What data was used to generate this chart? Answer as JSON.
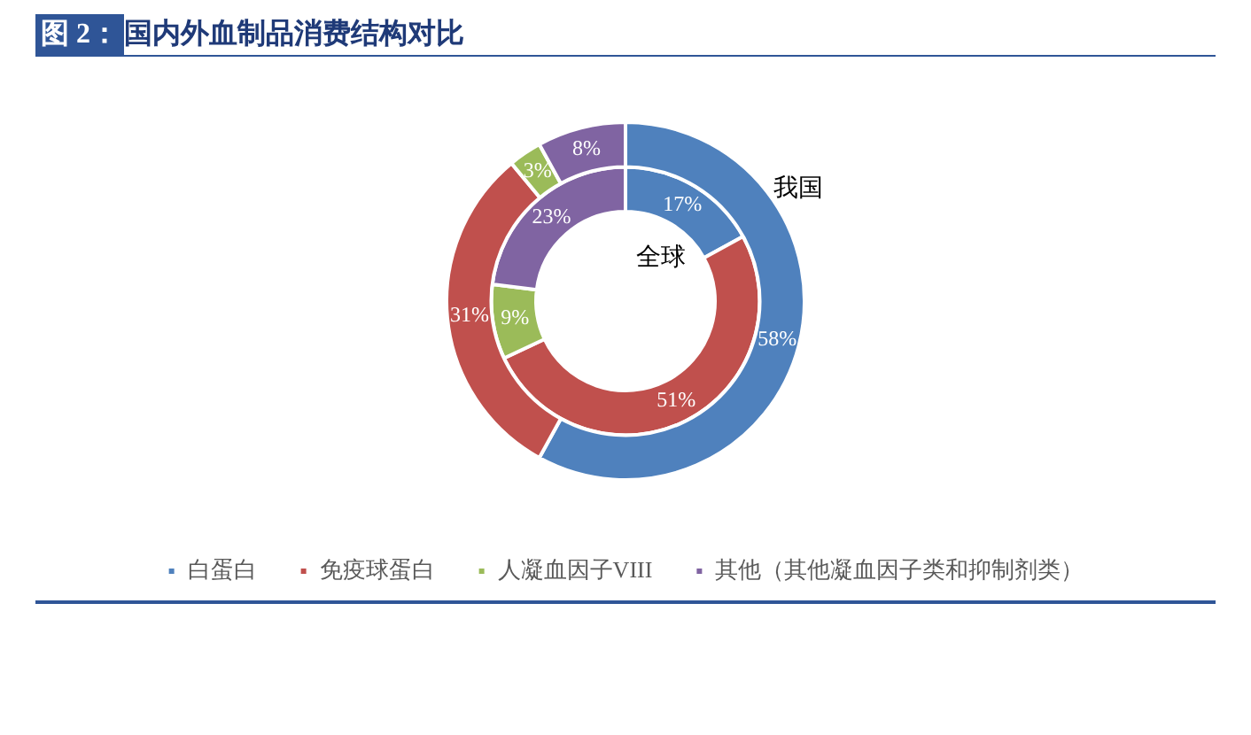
{
  "chart_data": {
    "type": "donut",
    "title": "图 2：国内外血制品消费结构对比",
    "categories": [
      "白蛋白",
      "免疫球蛋白",
      "人凝血因子VIII",
      "其他（其他凝血因子类和抑制剂类）"
    ],
    "colors": [
      "#4f81bd",
      "#c0504d",
      "#9bbb59",
      "#8064a2"
    ],
    "series": [
      {
        "name": "我国",
        "values": [
          58,
          31,
          3,
          8
        ],
        "value_labels": [
          "58%",
          "31%",
          "3%",
          "8%"
        ]
      },
      {
        "name": "全球",
        "values": [
          17,
          51,
          9,
          23
        ],
        "value_labels": [
          "17%",
          "51%",
          "9%",
          "23%"
        ]
      }
    ],
    "legend": "bottom"
  }
}
